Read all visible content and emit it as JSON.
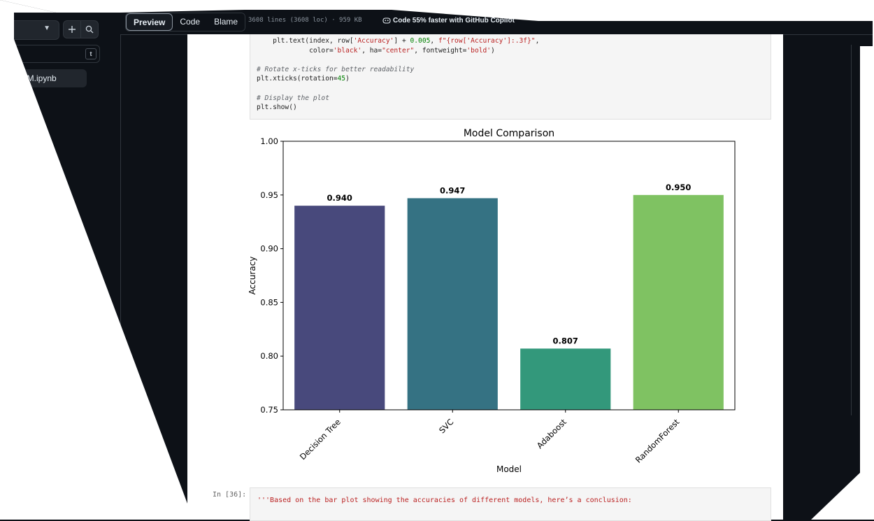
{
  "sidebar": {
    "file_name": "RM.ipynb",
    "filter_shortcut": "t",
    "add_icon": "plus-icon",
    "search_icon": "search-icon"
  },
  "toolbar": {
    "tabs": [
      "Preview",
      "Code",
      "Blame"
    ],
    "active_tab": "Preview",
    "file_meta": "3608 lines (3608 loc) · 959 KB",
    "copilot_text": "Code 55% faster with GitHub Copilot"
  },
  "notebook": {
    "code_cell": [
      [
        "    plt.text(index, row[",
        [
          "st",
          "'Accuracy'"
        ],
        "] + ",
        [
          "nu",
          "0.005"
        ],
        ", ",
        [
          "st",
          "f\"{row['Accuracy']:.3f}\""
        ],
        ","
      ],
      [
        "             color=",
        [
          "st",
          "'black'"
        ],
        ", ha=",
        [
          "st",
          "\"center\""
        ],
        ", fontweight=",
        [
          "st",
          "'bold'"
        ],
        ")"
      ],
      [
        ""
      ],
      [
        [
          "cm",
          "# Rotate x-ticks for better readability"
        ]
      ],
      [
        "plt.xticks(rotation=",
        [
          "nu",
          "45"
        ],
        ")"
      ],
      [
        ""
      ],
      [
        [
          "cm",
          "# Display the plot"
        ]
      ],
      [
        "plt.show()"
      ]
    ],
    "next_prompt": "In [36]:",
    "next_cell_text": "'''Based on the bar plot showing the accuracies of different models, here’s a conclusion:"
  },
  "chart_data": {
    "type": "bar",
    "title": "Model Comparison",
    "xlabel": "Model",
    "ylabel": "Accuracy",
    "categories": [
      "Decision Tree",
      "SVC",
      "Adaboost",
      "RandomForest"
    ],
    "values": [
      0.94,
      0.947,
      0.807,
      0.95
    ],
    "value_labels": [
      "0.940",
      "0.947",
      "0.807",
      "0.950"
    ],
    "colors": [
      "#48497c",
      "#357283",
      "#33987b",
      "#7fc262"
    ],
    "ylim": [
      0.75,
      1.0
    ],
    "yticks": [
      "0.75",
      "0.80",
      "0.85",
      "0.90",
      "0.95",
      "1.00"
    ],
    "grid": false
  }
}
